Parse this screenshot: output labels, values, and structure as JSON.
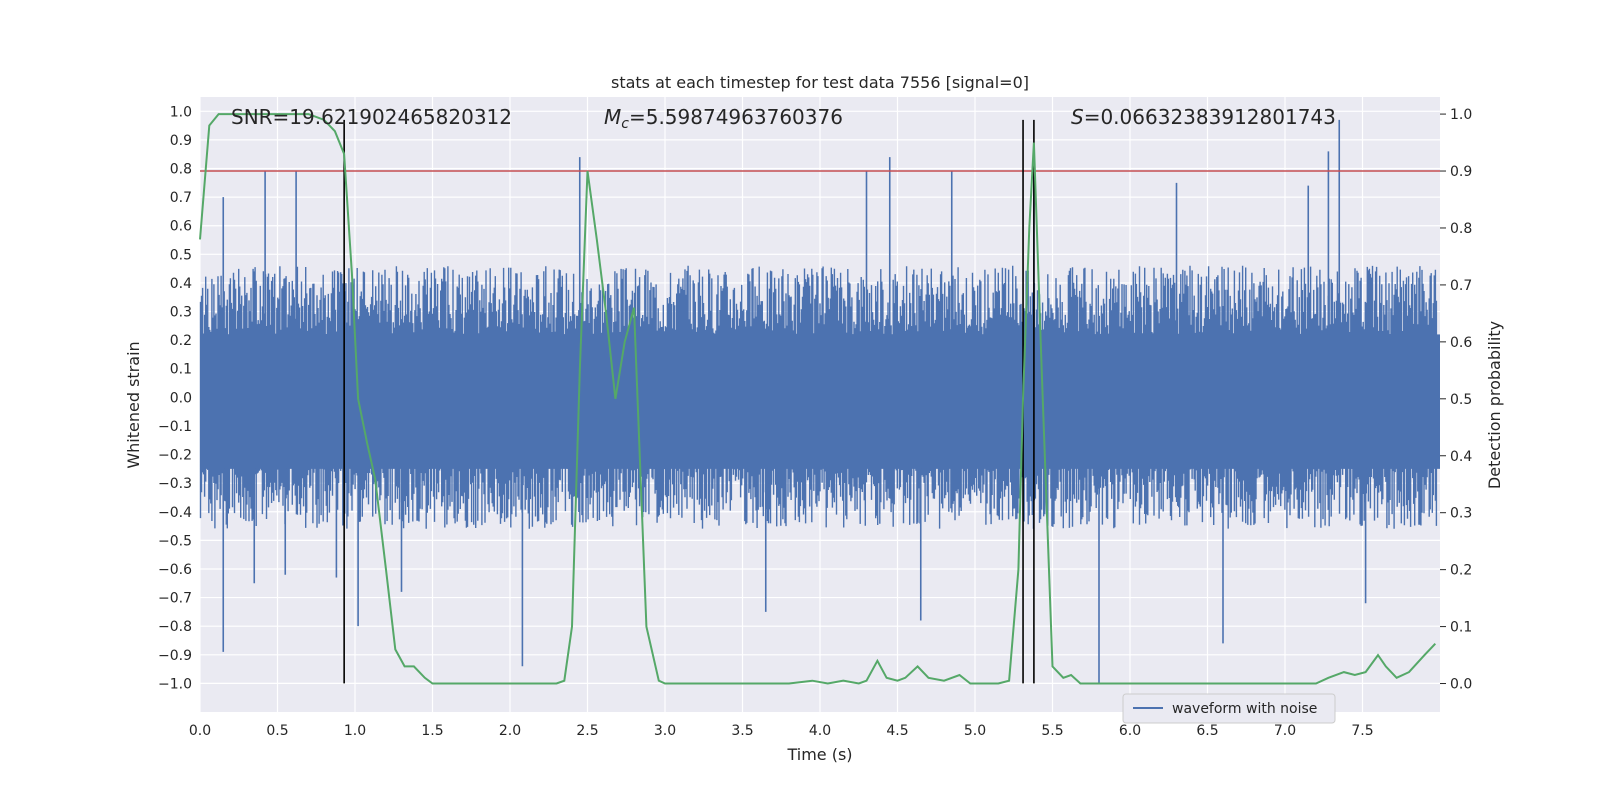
{
  "chart_data": {
    "type": "line",
    "title": "stats at each timestep for test data 7556 [signal=0]",
    "xlabel": "Time (s)",
    "ylabel_left": "Whitened strain",
    "ylabel_right": "Detection probability",
    "xlim": [
      0.0,
      8.0
    ],
    "ylim_left": [
      -1.1,
      1.05
    ],
    "ylim_right": [
      -0.05,
      1.03
    ],
    "xticks": [
      "0.0",
      "0.5",
      "1.0",
      "1.5",
      "2.0",
      "2.5",
      "3.0",
      "3.5",
      "4.0",
      "4.5",
      "5.0",
      "5.5",
      "6.0",
      "6.5",
      "7.0",
      "7.5"
    ],
    "yticks_left": [
      "-1.0",
      "-0.9",
      "-0.8",
      "-0.7",
      "-0.6",
      "-0.5",
      "-0.4",
      "-0.3",
      "-0.2",
      "-0.1",
      "0.0",
      "0.1",
      "0.2",
      "0.3",
      "0.4",
      "0.5",
      "0.6",
      "0.7",
      "0.8",
      "0.9",
      "1.0"
    ],
    "yticks_right": [
      "0.0",
      "0.1",
      "0.2",
      "0.3",
      "0.4",
      "0.5",
      "0.6",
      "0.7",
      "0.8",
      "0.9",
      "1.0"
    ],
    "grid": true,
    "annotations": {
      "snr": "SNR=19.621902465820312",
      "mc_symbol": "M",
      "mc_sub": "c",
      "mc_value": "=5.59874963760376",
      "s_symbol": "S",
      "s_value": "=0.06632383912801743"
    },
    "threshold": {
      "y_prob": 0.9,
      "color": "#c44e52"
    },
    "vertical_lines": [
      0.93,
      5.31,
      5.38
    ],
    "vline_y_range_strain": [
      -1.0,
      0.97
    ],
    "legend": {
      "entries": [
        "waveform with noise"
      ],
      "location": "lower-right"
    },
    "series": [
      {
        "name": "waveform with noise",
        "axis": "left",
        "color": "#4c72b0",
        "description": "whitened strain noise, approx. uniform band ±0.4 with sparse spikes",
        "band": [
          -0.4,
          0.4
        ],
        "spikes": [
          {
            "x": 0.15,
            "y": 0.7
          },
          {
            "x": 0.35,
            "y": -0.65
          },
          {
            "x": 0.42,
            "y": 0.79
          },
          {
            "x": 0.55,
            "y": -0.62
          },
          {
            "x": 0.62,
            "y": 0.79
          },
          {
            "x": 0.88,
            "y": -0.63
          },
          {
            "x": 0.15,
            "y": -0.89
          },
          {
            "x": 1.02,
            "y": -0.8
          },
          {
            "x": 1.3,
            "y": -0.68
          },
          {
            "x": 2.08,
            "y": -0.94
          },
          {
            "x": 2.45,
            "y": 0.84
          },
          {
            "x": 3.65,
            "y": -0.75
          },
          {
            "x": 4.3,
            "y": 0.79
          },
          {
            "x": 4.45,
            "y": 0.84
          },
          {
            "x": 4.65,
            "y": -0.78
          },
          {
            "x": 4.85,
            "y": 0.79
          },
          {
            "x": 5.38,
            "y": 0.86
          },
          {
            "x": 5.8,
            "y": -1.0
          },
          {
            "x": 6.3,
            "y": 0.75
          },
          {
            "x": 6.6,
            "y": -0.86
          },
          {
            "x": 7.15,
            "y": 0.74
          },
          {
            "x": 7.35,
            "y": 0.97
          },
          {
            "x": 7.28,
            "y": 0.86
          },
          {
            "x": 7.52,
            "y": -0.72
          }
        ]
      },
      {
        "name": "Detection probability",
        "axis": "right",
        "color": "#55a868",
        "x": [
          0.0,
          0.06,
          0.12,
          0.2,
          0.3,
          0.4,
          0.5,
          0.6,
          0.7,
          0.8,
          0.87,
          0.93,
          0.98,
          1.02,
          1.08,
          1.13,
          1.2,
          1.26,
          1.32,
          1.38,
          1.45,
          1.5,
          1.6,
          1.7,
          1.8,
          1.9,
          2.0,
          2.1,
          2.2,
          2.3,
          2.35,
          2.4,
          2.45,
          2.5,
          2.56,
          2.62,
          2.68,
          2.74,
          2.8,
          2.88,
          2.96,
          3.0,
          3.1,
          3.2,
          3.5,
          3.8,
          3.95,
          4.05,
          4.15,
          4.25,
          4.3,
          4.37,
          4.43,
          4.5,
          4.55,
          4.63,
          4.7,
          4.8,
          4.9,
          4.97,
          5.05,
          5.15,
          5.22,
          5.28,
          5.31,
          5.35,
          5.38,
          5.43,
          5.5,
          5.57,
          5.62,
          5.68,
          5.75,
          5.85,
          6.0,
          6.3,
          6.6,
          6.9,
          7.2,
          7.28,
          7.38,
          7.45,
          7.52,
          7.6,
          7.65,
          7.72,
          7.8,
          7.9,
          7.97
        ],
        "y": [
          0.78,
          0.98,
          1.0,
          1.0,
          1.0,
          1.0,
          1.0,
          1.0,
          1.0,
          0.99,
          0.97,
          0.93,
          0.72,
          0.5,
          0.42,
          0.36,
          0.2,
          0.06,
          0.03,
          0.03,
          0.01,
          0.0,
          0.0,
          0.0,
          0.0,
          0.0,
          0.0,
          0.0,
          0.0,
          0.0,
          0.005,
          0.1,
          0.55,
          0.9,
          0.78,
          0.65,
          0.5,
          0.6,
          0.66,
          0.1,
          0.005,
          0.0,
          0.0,
          0.0,
          0.0,
          0.0,
          0.005,
          0.0,
          0.005,
          0.0,
          0.005,
          0.04,
          0.01,
          0.005,
          0.01,
          0.03,
          0.01,
          0.005,
          0.015,
          0.0,
          0.0,
          0.0,
          0.005,
          0.2,
          0.5,
          0.8,
          0.95,
          0.55,
          0.03,
          0.01,
          0.015,
          0.0,
          0.0,
          0.0,
          0.0,
          0.0,
          0.0,
          0.0,
          0.0,
          0.01,
          0.02,
          0.015,
          0.02,
          0.05,
          0.03,
          0.01,
          0.02,
          0.05,
          0.07
        ]
      }
    ]
  }
}
